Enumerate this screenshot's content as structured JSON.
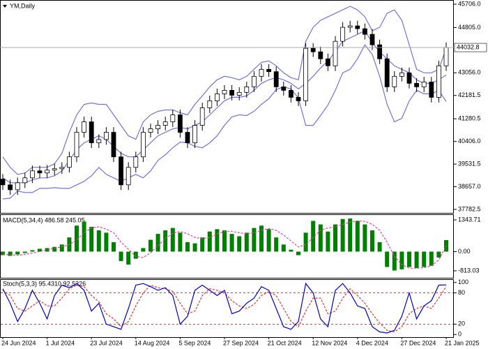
{
  "chart_data": [
    {
      "type": "candlestick",
      "title": "YM,Daily",
      "categories": [
        "24 Jun 2024",
        null,
        null,
        null,
        null,
        null,
        "1 Jul 2024",
        null,
        null,
        null,
        null,
        null,
        "23 Jul 2024",
        null,
        null,
        null,
        null,
        null,
        "14 Aug 2024",
        null,
        null,
        null,
        null,
        null,
        "5 Sep 2024",
        null,
        null,
        null,
        null,
        null,
        "27 Sep 2024",
        null,
        null,
        null,
        null,
        null,
        "21 Oct 2024",
        null,
        null,
        null,
        null,
        null,
        "12 Nov 2024",
        null,
        null,
        null,
        null,
        null,
        "4 Dec 2024",
        null,
        null,
        null,
        null,
        null,
        "27 Dec 2024",
        null,
        null,
        null,
        null,
        null,
        "21 Jan 2025"
      ],
      "open": [
        38950,
        38730,
        38540,
        38811,
        39000,
        39271,
        39189,
        39298,
        39352,
        39406,
        39811,
        40758,
        41163,
        40352,
        40480,
        40758,
        39811,
        38730,
        39406,
        39811,
        40758,
        40893,
        41028,
        41163,
        41434,
        40758,
        40352,
        41028,
        41704,
        41975,
        42245,
        42380,
        42191,
        42300,
        42515,
        42921,
        43191,
        43100,
        42515,
        42380,
        42110,
        41975,
        44003,
        43867,
        43597,
        43327,
        44273,
        44814,
        44868,
        44760,
        44543,
        44138,
        43597,
        42515,
        42921,
        43056,
        42651,
        42515,
        42700,
        42110,
        43327
      ],
      "high": [
        39150,
        38930,
        39011,
        39200,
        39471,
        39471,
        39498,
        39552,
        39606,
        40011,
        40958,
        41363,
        41363,
        40680,
        40958,
        40958,
        40011,
        39606,
        40011,
        40958,
        41093,
        41228,
        41363,
        41634,
        41634,
        40958,
        41228,
        41904,
        42175,
        42445,
        42580,
        42580,
        42500,
        42715,
        43121,
        43391,
        43391,
        43300,
        42715,
        42580,
        42310,
        44203,
        44203,
        44067,
        43797,
        44473,
        45014,
        45068,
        45068,
        44960,
        44743,
        44338,
        43797,
        43121,
        43256,
        43256,
        42851,
        42900,
        42900,
        43527,
        44233
      ],
      "low": [
        38530,
        38340,
        38340,
        38611,
        38800,
        38989,
        38989,
        39098,
        39152,
        39206,
        39611,
        40558,
        40152,
        40152,
        40280,
        39611,
        38530,
        38530,
        39206,
        39611,
        40558,
        40693,
        40828,
        40963,
        40558,
        40152,
        40152,
        40828,
        41504,
        41775,
        42045,
        41991,
        41991,
        42100,
        42315,
        42721,
        42900,
        42315,
        42180,
        41910,
        41775,
        41775,
        43667,
        43397,
        43127,
        43127,
        44073,
        44614,
        44560,
        44343,
        43938,
        43397,
        42315,
        42315,
        42721,
        42451,
        42315,
        42315,
        41910,
        41910,
        43127
      ],
      "close": [
        38730,
        38540,
        38811,
        39000,
        39271,
        39189,
        39298,
        39352,
        39406,
        39811,
        40758,
        41163,
        40352,
        40480,
        40758,
        39811,
        38730,
        39406,
        39811,
        40758,
        40893,
        41028,
        41163,
        41434,
        40758,
        40352,
        41028,
        41704,
        41975,
        42245,
        42380,
        42191,
        42300,
        42515,
        42921,
        43191,
        43100,
        42515,
        42380,
        42110,
        41975,
        44003,
        43867,
        43597,
        43327,
        44273,
        44814,
        44868,
        44760,
        44543,
        44138,
        43597,
        42515,
        42921,
        43056,
        42651,
        42515,
        42700,
        42110,
        43327,
        44032.8
      ],
      "bands": {
        "color": "#7272e0",
        "upper": [
          39811,
          39406,
          39135,
          39189,
          39406,
          39406,
          39406,
          39541,
          39946,
          40758,
          41434,
          41839,
          41893,
          41839,
          41839,
          41434,
          41028,
          40622,
          40487,
          41163,
          41434,
          41569,
          41623,
          41623,
          41515,
          41434,
          41839,
          42164,
          42515,
          42786,
          42921,
          42867,
          42786,
          42921,
          43191,
          43462,
          43516,
          43326,
          43056,
          42867,
          42786,
          44273,
          44814,
          45084,
          45219,
          45354,
          45489,
          45625,
          45489,
          45219,
          44678,
          44814,
          45354,
          45489,
          45084,
          44138,
          43191,
          43056,
          43056,
          43191,
          44002
        ],
        "middle": [
          38999,
          38811,
          38811,
          38811,
          38919,
          38999,
          38999,
          39081,
          39270,
          39676,
          40081,
          40352,
          40487,
          40622,
          40487,
          40217,
          39946,
          39811,
          39811,
          40081,
          40352,
          40622,
          40758,
          40893,
          40947,
          40893,
          41028,
          41163,
          41434,
          41704,
          41975,
          42110,
          42110,
          42164,
          42380,
          42650,
          42786,
          42867,
          42786,
          42650,
          42434,
          42650,
          42921,
          43245,
          43515,
          43867,
          44273,
          44408,
          44543,
          44678,
          44219,
          43867,
          43597,
          43326,
          43191,
          43056,
          42786,
          42650,
          42650,
          42786,
          42975
        ],
        "lower": [
          38187,
          38216,
          38487,
          38433,
          38432,
          38592,
          38592,
          38621,
          38594,
          38594,
          38728,
          38865,
          39081,
          39405,
          39135,
          39000,
          38864,
          39000,
          39135,
          38999,
          39270,
          39675,
          39893,
          40163,
          40379,
          40352,
          40217,
          40162,
          40353,
          40622,
          41029,
          41353,
          41434,
          41407,
          41569,
          41838,
          42056,
          42408,
          42516,
          42433,
          42082,
          41027,
          41028,
          41406,
          41811,
          42380,
          43057,
          43191,
          43597,
          44137,
          43760,
          42920,
          41840,
          41163,
          41298,
          41974,
          42381,
          42244,
          42244,
          42381,
          41948
        ]
      },
      "up_color": "#ffffff",
      "down_color": "#000000",
      "line_color": "#000000",
      "price_line_color": "#a0a0a0",
      "ylim": [
        37647,
        45841
      ],
      "yticks": [
        {
          "value": 45706,
          "label": "45706.0"
        },
        {
          "value": 44805,
          "label": "44805.0"
        },
        {
          "value": 43056,
          "label": "43056.0"
        },
        42181.5,
        41280.5,
        {
          "value": 40406,
          "label": "40406.0"
        },
        39531.5,
        {
          "value": 38657,
          "label": "38657.0"
        },
        37782.5
      ]
    },
    {
      "type": "macd",
      "title": "MACD(5,34,4) 486.58 245.05",
      "histogram": [
        -150,
        -180,
        -120,
        -60,
        60,
        120,
        150,
        200,
        300,
        600,
        1100,
        1270,
        1050,
        900,
        800,
        400,
        -400,
        -550,
        -300,
        150,
        500,
        750,
        900,
        1000,
        800,
        400,
        350,
        600,
        850,
        950,
        900,
        750,
        650,
        800,
        1000,
        1100,
        950,
        600,
        300,
        80,
        -150,
        800,
        1300,
        1150,
        850,
        1150,
        1380,
        1400,
        1300,
        1150,
        900,
        400,
        -650,
        -800,
        -750,
        -650,
        -700,
        -650,
        -600,
        -250,
        486.58
      ],
      "signal": [
        -100,
        -140,
        -150,
        -120,
        -60,
        10,
        80,
        140,
        200,
        300,
        500,
        800,
        1000,
        1050,
        950,
        800,
        400,
        100,
        -200,
        -250,
        -50,
        250,
        550,
        780,
        850,
        750,
        600,
        550,
        600,
        750,
        850,
        850,
        800,
        750,
        800,
        900,
        980,
        900,
        700,
        450,
        200,
        300,
        600,
        900,
        1000,
        1050,
        1150,
        1250,
        1300,
        1280,
        1150,
        900,
        400,
        -200,
        -550,
        -700,
        -700,
        -680,
        -600,
        -350,
        245.05
      ],
      "histogram_color": "#008000",
      "signal_color": "#e0409a",
      "ylim": [
        -1108,
        1550
      ],
      "yticks": [
        1343.71,
        {
          "value": 0,
          "label": "0.00"
        },
        -813.03
      ]
    },
    {
      "type": "stochastic",
      "title": "Stoch(5,3,3) 95.4310 92.5326",
      "main": [
        88,
        60,
        25,
        50,
        85,
        60,
        30,
        75,
        95,
        90,
        98,
        85,
        45,
        60,
        20,
        15,
        10,
        50,
        95,
        98,
        92,
        85,
        90,
        75,
        20,
        35,
        85,
        95,
        85,
        75,
        85,
        40,
        45,
        60,
        70,
        92,
        85,
        50,
        15,
        10,
        25,
        98,
        80,
        30,
        15,
        85,
        98,
        80,
        55,
        50,
        15,
        5,
        3,
        8,
        35,
        80,
        30,
        55,
        65,
        95,
        95.431
      ],
      "signal": [
        85,
        75,
        50,
        45,
        55,
        65,
        55,
        55,
        70,
        88,
        95,
        92,
        75,
        63,
        40,
        30,
        15,
        25,
        55,
        80,
        95,
        90,
        88,
        83,
        60,
        40,
        45,
        75,
        88,
        85,
        80,
        65,
        55,
        50,
        58,
        75,
        82,
        75,
        50,
        25,
        15,
        45,
        70,
        70,
        40,
        45,
        70,
        88,
        75,
        60,
        40,
        22,
        8,
        5,
        15,
        40,
        50,
        55,
        50,
        70,
        92.5326
      ],
      "main_color": "#0000cd",
      "signal_color": "#e03030",
      "levels": [
        80,
        20
      ],
      "level_color": "#c00000",
      "ylim": [
        -5,
        105
      ],
      "yticks": [
        100,
        80,
        20,
        0
      ]
    }
  ]
}
